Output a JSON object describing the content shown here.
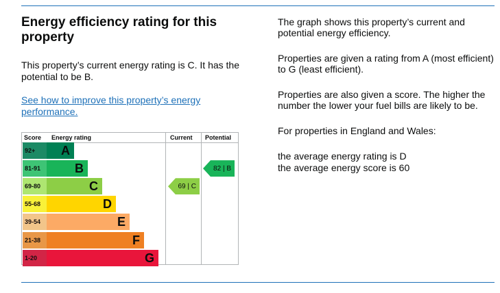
{
  "heading": "Energy efficiency rating for this property",
  "summary": "This property’s current energy rating is C. It has the potential to be B.",
  "improve_link": "See how to improve this property’s energy performance.",
  "info": {
    "p1": "The graph shows this property’s current and potential energy efficiency.",
    "p2": "Properties are given a rating from A (most efficient) to G (least efficient).",
    "p3": "Properties are also given a score. The higher the number the lower your fuel bills are likely to be.",
    "p4": "For properties in England and Wales:",
    "p5": "the average energy rating is D",
    "p6": "the average energy score is 60"
  },
  "chart": {
    "headers": {
      "score": "Score",
      "rating": "Energy rating",
      "current": "Current",
      "potential": "Potential"
    },
    "bands": [
      {
        "score": "92+",
        "letter": "A",
        "color": "#008054"
      },
      {
        "score": "81-91",
        "letter": "B",
        "color": "#19b459"
      },
      {
        "score": "69-80",
        "letter": "C",
        "color": "#8dce46"
      },
      {
        "score": "55-68",
        "letter": "D",
        "color": "#ffd500"
      },
      {
        "score": "39-54",
        "letter": "E",
        "color": "#fcaa65"
      },
      {
        "score": "21-38",
        "letter": "F",
        "color": "#ef8023"
      },
      {
        "score": "1-20",
        "letter": "G",
        "color": "#e9153b"
      }
    ],
    "current": {
      "score": 69,
      "letter": "C",
      "label": "69 | C",
      "color": "#8dce46"
    },
    "potential": {
      "score": 82,
      "letter": "B",
      "label": "82 | B",
      "color": "#19b459"
    }
  }
}
